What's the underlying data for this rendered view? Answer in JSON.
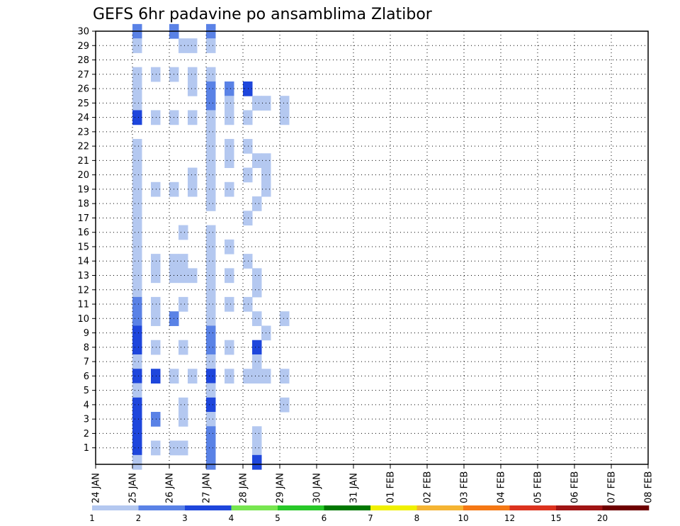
{
  "chart_data": {
    "type": "heatmap",
    "title": "GEFS 6hr padavine po ansamblima Zlatibor",
    "xlabel": "",
    "ylabel": "",
    "x_ticks": [
      "24 JAN",
      "25 JAN",
      "26 JAN",
      "27 JAN",
      "28 JAN",
      "29 JAN",
      "30 JAN",
      "31 JAN",
      "01 FEB",
      "02 FEB",
      "03 FEB",
      "04 FEB",
      "05 FEB",
      "06 FEB",
      "07 FEB",
      "08 FEB"
    ],
    "y_ticks": [
      1,
      2,
      3,
      4,
      5,
      6,
      7,
      8,
      9,
      10,
      11,
      12,
      13,
      14,
      15,
      16,
      17,
      18,
      19,
      20,
      21,
      22,
      23,
      24,
      25,
      26,
      27,
      28,
      29,
      30
    ],
    "xlim_days": [
      0,
      15
    ],
    "ylim": [
      0,
      30
    ],
    "grid": true,
    "colorbar": {
      "labels": [
        "1",
        "2",
        "3",
        "4",
        "5",
        "6",
        "7",
        "8",
        "10",
        "12",
        "15",
        "20"
      ],
      "colors": [
        "#b4c8f0",
        "#5a82e6",
        "#1e46dc",
        "#78e650",
        "#28c828",
        "#007800",
        "#f0f000",
        "#f5b432",
        "#f57814",
        "#dc321e",
        "#a01414",
        "#6e0000"
      ]
    },
    "cells": [
      [
        1,
        30,
        1
      ],
      [
        1,
        29,
        0
      ],
      [
        1,
        27,
        0
      ],
      [
        1,
        26,
        0
      ],
      [
        1,
        25,
        0
      ],
      [
        1,
        24,
        2
      ],
      [
        1,
        22,
        0
      ],
      [
        1,
        21,
        0
      ],
      [
        1,
        20,
        0
      ],
      [
        1,
        19,
        0
      ],
      [
        1,
        18,
        0
      ],
      [
        1,
        17,
        0
      ],
      [
        1,
        16,
        0
      ],
      [
        1,
        15,
        0
      ],
      [
        1,
        14,
        0
      ],
      [
        1,
        13,
        0
      ],
      [
        1,
        12,
        0
      ],
      [
        1,
        11,
        1
      ],
      [
        1,
        10,
        1
      ],
      [
        1,
        9,
        2
      ],
      [
        1,
        8,
        2
      ],
      [
        1,
        7,
        0
      ],
      [
        1,
        6,
        2
      ],
      [
        1,
        5,
        0
      ],
      [
        1,
        4,
        2
      ],
      [
        1,
        3,
        2
      ],
      [
        1,
        2,
        2
      ],
      [
        1,
        1,
        2
      ],
      [
        1,
        0,
        0
      ],
      [
        1.5,
        27,
        0
      ],
      [
        1.5,
        24,
        0
      ],
      [
        1.5,
        19,
        0
      ],
      [
        1.5,
        14,
        0
      ],
      [
        1.5,
        13,
        0
      ],
      [
        1.5,
        11,
        0
      ],
      [
        1.5,
        10,
        0
      ],
      [
        1.5,
        8,
        0
      ],
      [
        1.5,
        6,
        2
      ],
      [
        1.5,
        3,
        1
      ],
      [
        1.5,
        1,
        0
      ],
      [
        2,
        30,
        1
      ],
      [
        2,
        27,
        0
      ],
      [
        2,
        24,
        0
      ],
      [
        2,
        19,
        0
      ],
      [
        2,
        14,
        0
      ],
      [
        2,
        13,
        0
      ],
      [
        2,
        10,
        1
      ],
      [
        2,
        6,
        0
      ],
      [
        2,
        1,
        0
      ],
      [
        2.25,
        29,
        0
      ],
      [
        2.25,
        16,
        0
      ],
      [
        2.25,
        14,
        0
      ],
      [
        2.25,
        13,
        0
      ],
      [
        2.25,
        11,
        0
      ],
      [
        2.25,
        8,
        0
      ],
      [
        2.25,
        4,
        0
      ],
      [
        2.25,
        3,
        0
      ],
      [
        2.25,
        1,
        0
      ],
      [
        2.5,
        29,
        0
      ],
      [
        2.5,
        27,
        0
      ],
      [
        2.5,
        26,
        0
      ],
      [
        2.5,
        24,
        0
      ],
      [
        2.5,
        20,
        0
      ],
      [
        2.5,
        19,
        0
      ],
      [
        2.5,
        13,
        0
      ],
      [
        2.5,
        6,
        0
      ],
      [
        3,
        30,
        1
      ],
      [
        3,
        29,
        0
      ],
      [
        3,
        27,
        0
      ],
      [
        3,
        26,
        1
      ],
      [
        3,
        25,
        1
      ],
      [
        3,
        24,
        0
      ],
      [
        3,
        23,
        0
      ],
      [
        3,
        22,
        0
      ],
      [
        3,
        21,
        0
      ],
      [
        3,
        20,
        0
      ],
      [
        3,
        19,
        0
      ],
      [
        3,
        18,
        0
      ],
      [
        3,
        16,
        0
      ],
      [
        3,
        15,
        0
      ],
      [
        3,
        14,
        0
      ],
      [
        3,
        13,
        0
      ],
      [
        3,
        12,
        0
      ],
      [
        3,
        11,
        0
      ],
      [
        3,
        10,
        0
      ],
      [
        3,
        9,
        1
      ],
      [
        3,
        8,
        1
      ],
      [
        3,
        7,
        0
      ],
      [
        3,
        6,
        2
      ],
      [
        3,
        5,
        0
      ],
      [
        3,
        4,
        2
      ],
      [
        3,
        3,
        0
      ],
      [
        3,
        2,
        1
      ],
      [
        3,
        1,
        1
      ],
      [
        3,
        0,
        1
      ],
      [
        3.5,
        26,
        1
      ],
      [
        3.5,
        25,
        0
      ],
      [
        3.5,
        24,
        0
      ],
      [
        3.5,
        22,
        0
      ],
      [
        3.5,
        21,
        0
      ],
      [
        3.5,
        19,
        0
      ],
      [
        3.5,
        15,
        0
      ],
      [
        3.5,
        13,
        0
      ],
      [
        3.5,
        11,
        0
      ],
      [
        3.5,
        8,
        0
      ],
      [
        3.5,
        6,
        0
      ],
      [
        4,
        26,
        2
      ],
      [
        4,
        24,
        0
      ],
      [
        4,
        22,
        0
      ],
      [
        4,
        20,
        0
      ],
      [
        4,
        17,
        0
      ],
      [
        4,
        14,
        0
      ],
      [
        4,
        11,
        0
      ],
      [
        4,
        6,
        0
      ],
      [
        4.25,
        25,
        0
      ],
      [
        4.25,
        21,
        0
      ],
      [
        4.25,
        18,
        0
      ],
      [
        4.25,
        13,
        0
      ],
      [
        4.25,
        12,
        0
      ],
      [
        4.25,
        10,
        0
      ],
      [
        4.25,
        8,
        2
      ],
      [
        4.25,
        7,
        0
      ],
      [
        4.25,
        6,
        0
      ],
      [
        4.25,
        2,
        0
      ],
      [
        4.25,
        1,
        0
      ],
      [
        4.25,
        0,
        2
      ],
      [
        4.5,
        25,
        0
      ],
      [
        4.5,
        21,
        0
      ],
      [
        4.5,
        20,
        0
      ],
      [
        4.5,
        19,
        0
      ],
      [
        4.5,
        9,
        0
      ],
      [
        4.5,
        6,
        0
      ],
      [
        5,
        25,
        0
      ],
      [
        5,
        24,
        0
      ],
      [
        5,
        10,
        0
      ],
      [
        5,
        6,
        0
      ],
      [
        5,
        4,
        0
      ]
    ]
  }
}
